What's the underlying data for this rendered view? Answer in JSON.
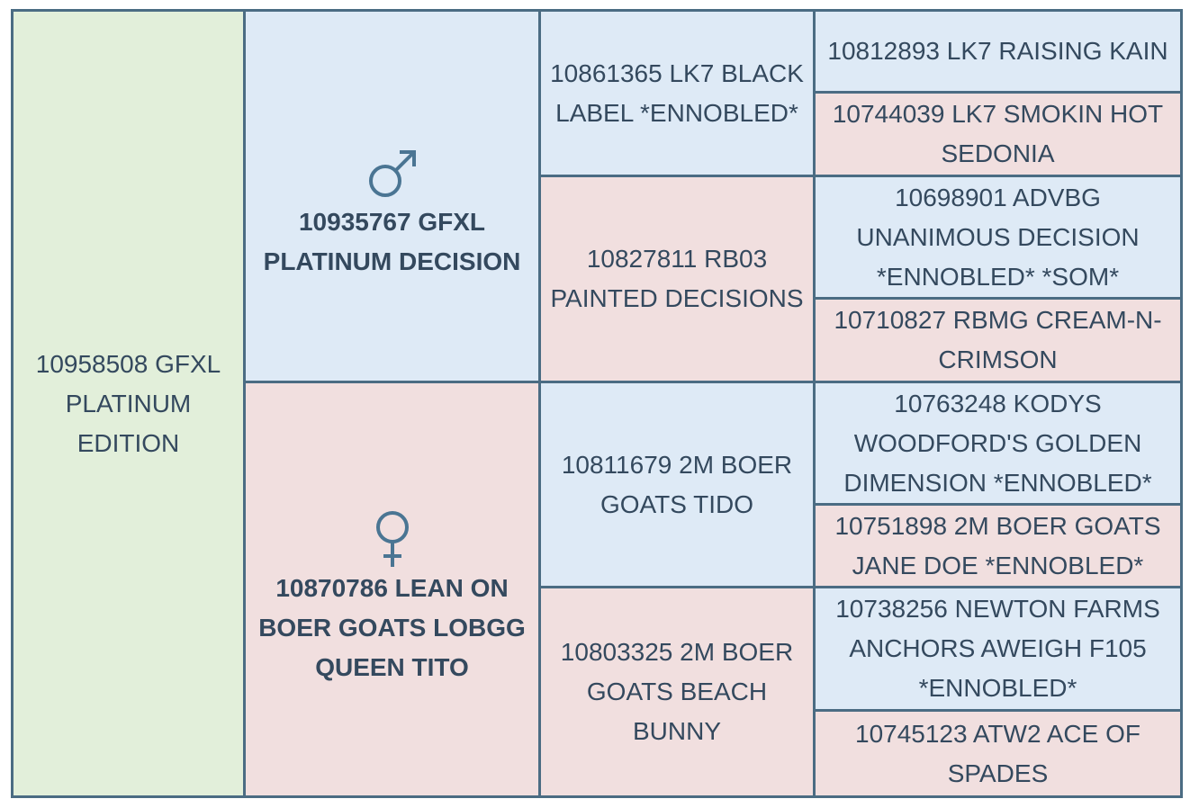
{
  "pedigree": {
    "animal": "10958508 GFXL PLATINUM EDITION",
    "sire": {
      "name": "10935767 GFXL PLATINUM DECISION",
      "sire": {
        "name": "10861365 LK7 BLACK LABEL *ENNOBLED*",
        "sire": "10812893 LK7 RAISING KAIN",
        "dam": "10744039 LK7 SMOKIN HOT SEDONIA"
      },
      "dam": {
        "name": "10827811 RB03 PAINTED DECISIONS",
        "sire": "10698901 ADVBG UNANIMOUS DECISION *ENNOBLED* *SOM*",
        "dam": "10710827 RBMG CREAM-N-CRIMSON"
      }
    },
    "dam": {
      "name": "10870786 LEAN ON BOER GOATS LOBGG QUEEN TITO",
      "sire": {
        "name": "10811679 2M BOER GOATS TIDO",
        "sire": "10763248 KODYS WOODFORD'S GOLDEN DIMENSION *ENNOBLED*",
        "dam": "10751898 2M BOER GOATS JANE DOE *ENNOBLED*"
      },
      "dam": {
        "name": "10803325 2M BOER GOATS BEACH BUNNY",
        "sire": "10738256 NEWTON FARMS ANCHORS AWEIGH F105 *ENNOBLED*",
        "dam": "10745123 ATW2 ACE OF SPADES"
      }
    }
  }
}
